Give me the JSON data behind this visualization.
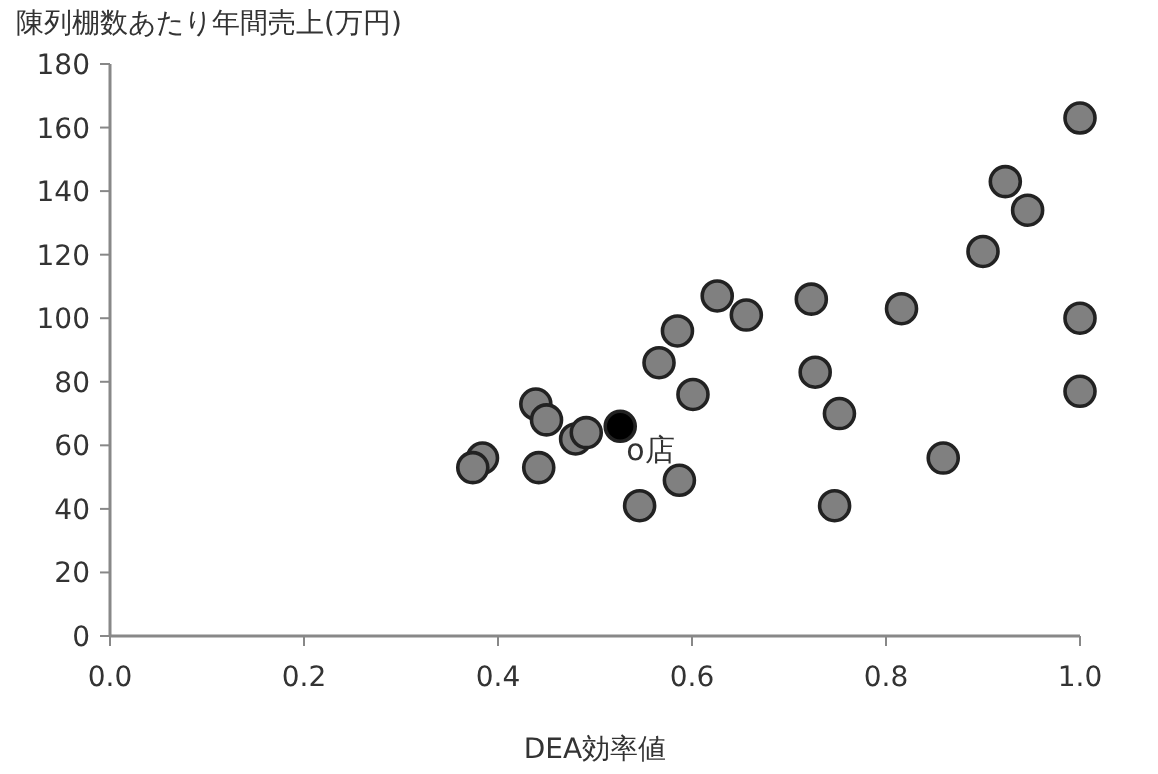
{
  "chart_data": {
    "type": "scatter",
    "ylabel": "陳列棚数あたり年間売上(万円)",
    "xlabel": "DEA効率値",
    "xlim": [
      0,
      1
    ],
    "xticks": [
      {
        "value": 0,
        "label": "0.0"
      },
      {
        "value": 0.2,
        "label": "0.2"
      },
      {
        "value": 0.4,
        "label": "0.4"
      },
      {
        "value": 0.6,
        "label": "0.6"
      },
      {
        "value": 0.8,
        "label": "0.8"
      },
      {
        "value": 1,
        "label": "1.0"
      }
    ],
    "ylim": [
      0,
      180
    ],
    "yticks": [
      0,
      20,
      40,
      60,
      80,
      100,
      120,
      140,
      160,
      180
    ],
    "grid": false,
    "marker": "circle",
    "series": [
      {
        "color": "#808080",
        "x": [
          1.0,
          0.923,
          0.946,
          0.9,
          1.0,
          1.0,
          0.816,
          0.723,
          0.727,
          0.752,
          0.859,
          0.747,
          0.626,
          0.656,
          0.585,
          0.566,
          0.601,
          0.587,
          0.546,
          0.439,
          0.45,
          0.48,
          0.491,
          0.384,
          0.374,
          0.442
        ],
        "values": [
          163,
          143,
          134,
          121,
          100,
          77,
          103,
          106,
          83,
          70,
          56,
          41,
          107,
          101,
          96,
          86,
          76,
          49,
          41,
          73,
          68,
          62,
          64,
          56,
          53,
          53
        ]
      },
      {
        "color": "#000000",
        "x": [
          0.526
        ],
        "values": [
          66
        ]
      }
    ],
    "annotations": [
      {
        "text": "o店",
        "x": 0.526,
        "y": 66
      }
    ]
  }
}
